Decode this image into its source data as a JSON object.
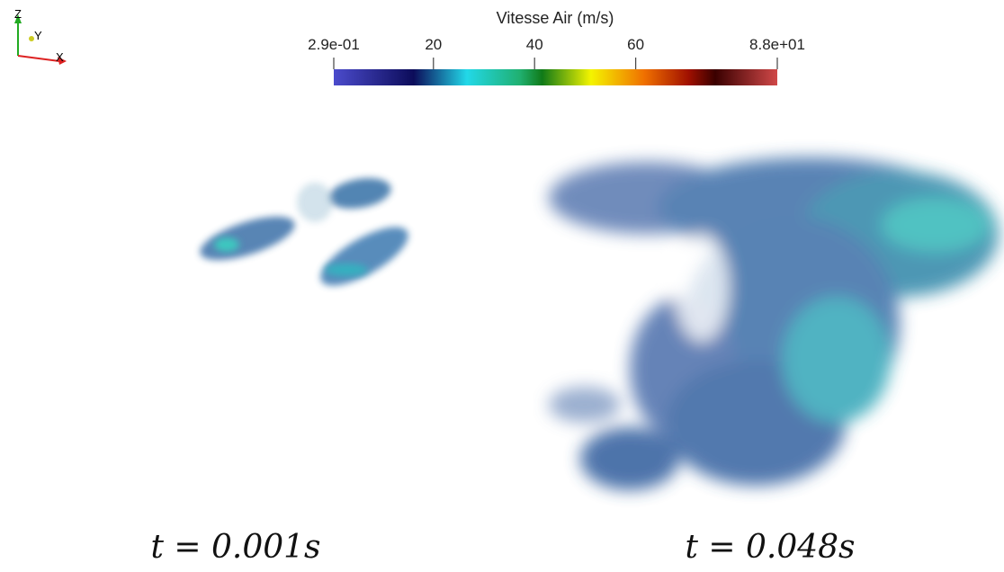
{
  "colorbar": {
    "title": "Vitesse Air (m/s)",
    "range": [
      0.29,
      88
    ],
    "ticks": [
      {
        "value": 0.29,
        "label": "2.9e-01"
      },
      20,
      40,
      60,
      {
        "value": 88,
        "label": "8.8e+01"
      }
    ],
    "colors": [
      {
        "offset": 0,
        "color": "#4b4bcc"
      },
      {
        "offset": 0.18,
        "color": "#0c0c5a"
      },
      {
        "offset": 0.3,
        "color": "#22d8e8"
      },
      {
        "offset": 0.42,
        "color": "#20b070"
      },
      {
        "offset": 0.47,
        "color": "#107a18"
      },
      {
        "offset": 0.58,
        "color": "#f4f400"
      },
      {
        "offset": 0.7,
        "color": "#f07000"
      },
      {
        "offset": 0.8,
        "color": "#a01000"
      },
      {
        "offset": 0.86,
        "color": "#3a0000"
      },
      {
        "offset": 1,
        "color": "#d04848"
      }
    ]
  },
  "axes_triad": {
    "z": "Z",
    "y": "Y",
    "x": "X"
  },
  "panels": [
    {
      "time_label": "t = 0.001s"
    },
    {
      "time_label": "t = 0.048s"
    }
  ]
}
